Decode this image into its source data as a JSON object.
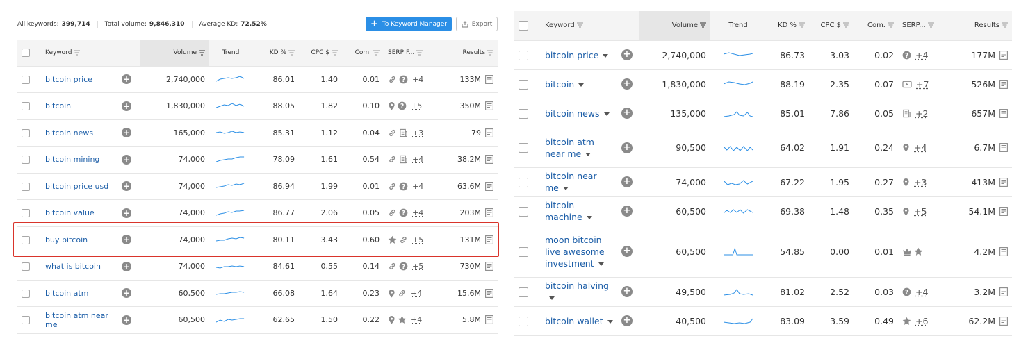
{
  "left": {
    "summary": {
      "all_keywords_label": "All keywords:",
      "all_keywords_value": "399,714",
      "total_volume_label": "Total volume:",
      "total_volume_value": "9,846,310",
      "avg_kd_label": "Average KD:",
      "avg_kd_value": "72.52%"
    },
    "keyword_manager_button": "To Keyword Manager",
    "export_button": "Export",
    "columns": {
      "keyword": "Keyword",
      "volume": "Volume",
      "trend": "Trend",
      "kd": "KD %",
      "cpc": "CPC $",
      "com": "Com.",
      "serp": "SERP F...",
      "results": "Results"
    },
    "rows": [
      {
        "keyword": "bitcoin price",
        "volume": "2,740,000",
        "kd": "86.01",
        "cpc": "1.40",
        "com": "0.01",
        "serp_icons": [
          "link-icon",
          "question-icon"
        ],
        "serp_more": "+4",
        "results": "133M"
      },
      {
        "keyword": "bitcoin",
        "volume": "1,830,000",
        "kd": "88.05",
        "cpc": "1.82",
        "com": "0.10",
        "serp_icons": [
          "pin-icon",
          "question-icon"
        ],
        "serp_more": "+5",
        "results": "350M"
      },
      {
        "keyword": "bitcoin news",
        "volume": "165,000",
        "kd": "85.31",
        "cpc": "1.12",
        "com": "0.04",
        "serp_icons": [
          "link-icon",
          "news-icon"
        ],
        "serp_more": "+3",
        "results": "79"
      },
      {
        "keyword": "bitcoin mining",
        "volume": "74,000",
        "kd": "78.09",
        "cpc": "1.61",
        "com": "0.54",
        "serp_icons": [
          "link-icon",
          "news-icon"
        ],
        "serp_more": "+4",
        "results": "38.2M"
      },
      {
        "keyword": "bitcoin price usd",
        "volume": "74,000",
        "kd": "86.94",
        "cpc": "1.99",
        "com": "0.01",
        "serp_icons": [
          "link-icon",
          "question-icon"
        ],
        "serp_more": "+4",
        "results": "63.6M"
      },
      {
        "keyword": "bitcoin value",
        "volume": "74,000",
        "kd": "86.77",
        "cpc": "2.06",
        "com": "0.05",
        "serp_icons": [
          "link-icon",
          "question-icon"
        ],
        "serp_more": "+4",
        "results": "203M"
      },
      {
        "keyword": "buy bitcoin",
        "volume": "74,000",
        "kd": "80.11",
        "cpc": "3.43",
        "com": "0.60",
        "serp_icons": [
          "star-icon",
          "link-icon"
        ],
        "serp_more": "+5",
        "results": "131M"
      },
      {
        "keyword": "what is bitcoin",
        "volume": "74,000",
        "kd": "84.61",
        "cpc": "0.55",
        "com": "0.14",
        "serp_icons": [
          "link-icon",
          "question-icon"
        ],
        "serp_more": "+5",
        "results": "730M"
      },
      {
        "keyword": "bitcoin atm",
        "volume": "60,500",
        "kd": "66.08",
        "cpc": "1.64",
        "com": "0.23",
        "serp_icons": [
          "pin-icon",
          "link-icon"
        ],
        "serp_more": "+4",
        "results": "15.6M"
      },
      {
        "keyword": "bitcoin atm near me",
        "volume": "60,500",
        "kd": "62.65",
        "cpc": "1.50",
        "com": "0.22",
        "serp_icons": [
          "pin-icon",
          "star-icon"
        ],
        "serp_more": "+4",
        "results": "5.8M"
      }
    ]
  },
  "right": {
    "columns": {
      "keyword": "Keyword",
      "volume": "Volume",
      "trend": "Trend",
      "kd": "KD %",
      "cpc": "CPC $",
      "com": "Com.",
      "serp": "SERP...",
      "results": "Results"
    },
    "rows": [
      {
        "keyword": "bitcoin price",
        "volume": "2,740,000",
        "kd": "86.73",
        "cpc": "3.03",
        "com": "0.02",
        "serp_icons": [
          "question-icon"
        ],
        "serp_more": "+4",
        "results": "177M"
      },
      {
        "keyword": "bitcoin",
        "volume": "1,830,000",
        "kd": "88.19",
        "cpc": "2.35",
        "com": "0.07",
        "serp_icons": [
          "video-icon"
        ],
        "serp_more": "+7",
        "results": "526M"
      },
      {
        "keyword": "bitcoin news",
        "volume": "135,000",
        "kd": "85.01",
        "cpc": "7.86",
        "com": "0.05",
        "serp_icons": [
          "news-icon"
        ],
        "serp_more": "+2",
        "results": "657M"
      },
      {
        "keyword": "bitcoin atm near me",
        "volume": "90,500",
        "kd": "64.02",
        "cpc": "1.91",
        "com": "0.24",
        "serp_icons": [
          "pin-icon"
        ],
        "serp_more": "+4",
        "results": "6.7M"
      },
      {
        "keyword": "bitcoin near me",
        "volume": "74,000",
        "kd": "67.22",
        "cpc": "1.95",
        "com": "0.27",
        "serp_icons": [
          "pin-icon"
        ],
        "serp_more": "+3",
        "results": "413M"
      },
      {
        "keyword": "bitcoin machine",
        "volume": "60,500",
        "kd": "69.38",
        "cpc": "1.48",
        "com": "0.35",
        "serp_icons": [
          "pin-icon"
        ],
        "serp_more": "+5",
        "results": "54.1M"
      },
      {
        "keyword": "moon bitcoin live awesome investment",
        "volume": "60,500",
        "kd": "54.85",
        "cpc": "0.00",
        "com": "0.01",
        "serp_icons": [
          "crown-icon",
          "star-icon"
        ],
        "serp_more": "",
        "results": "4.2M"
      },
      {
        "keyword": "bitcoin halving",
        "volume": "49,500",
        "kd": "81.02",
        "cpc": "2.52",
        "com": "0.03",
        "serp_icons": [
          "question-icon"
        ],
        "serp_more": "+4",
        "results": "3.2M"
      },
      {
        "keyword": "bitcoin wallet",
        "volume": "40,500",
        "kd": "83.09",
        "cpc": "3.59",
        "com": "0.49",
        "serp_icons": [
          "star-icon"
        ],
        "serp_more": "+6",
        "results": "62.2M"
      }
    ]
  },
  "colors": {
    "accent": "#2b8fe6",
    "link": "#1e5fa8",
    "highlight": "#d9342b",
    "sparkline": "#2b8fe6"
  }
}
